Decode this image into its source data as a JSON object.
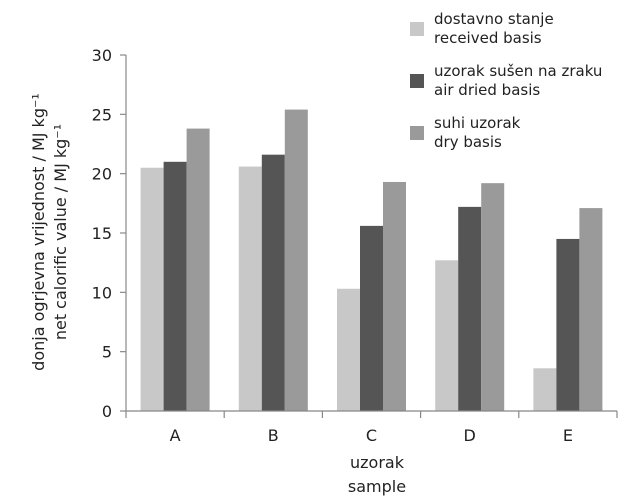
{
  "chart_data": {
    "type": "bar",
    "categories": [
      "A",
      "B",
      "C",
      "D",
      "E"
    ],
    "series": [
      {
        "name": "dostavno stanje received basis",
        "name_lines": [
          "dostavno stanje",
          "received basis"
        ],
        "color": "#c8c8c8",
        "values": [
          20.5,
          20.6,
          10.3,
          12.7,
          3.6
        ]
      },
      {
        "name": "uzorak sušen na zraku air dried basis",
        "name_lines": [
          "uzorak sušen na zraku",
          "air dried basis"
        ],
        "color": "#555555",
        "values": [
          21.0,
          21.6,
          15.6,
          17.2,
          14.5
        ]
      },
      {
        "name": "suhi uzorak dry basis",
        "name_lines": [
          "suhi uzorak",
          "dry basis"
        ],
        "color": "#9a9a9a",
        "values": [
          23.8,
          25.4,
          19.3,
          19.2,
          17.1
        ]
      }
    ],
    "ylim": [
      0,
      30
    ],
    "yticks": [
      "0",
      "5",
      "10",
      "15",
      "20",
      "25",
      "30"
    ],
    "xlabel_lines": [
      "uzorak",
      "sample"
    ],
    "ylabel_lines": [
      "donja ogrjevna vrijednost / MJ kg⁻¹",
      "net calorific value / MJ kg⁻¹"
    ],
    "legend_position": "top-right",
    "grid": false
  }
}
